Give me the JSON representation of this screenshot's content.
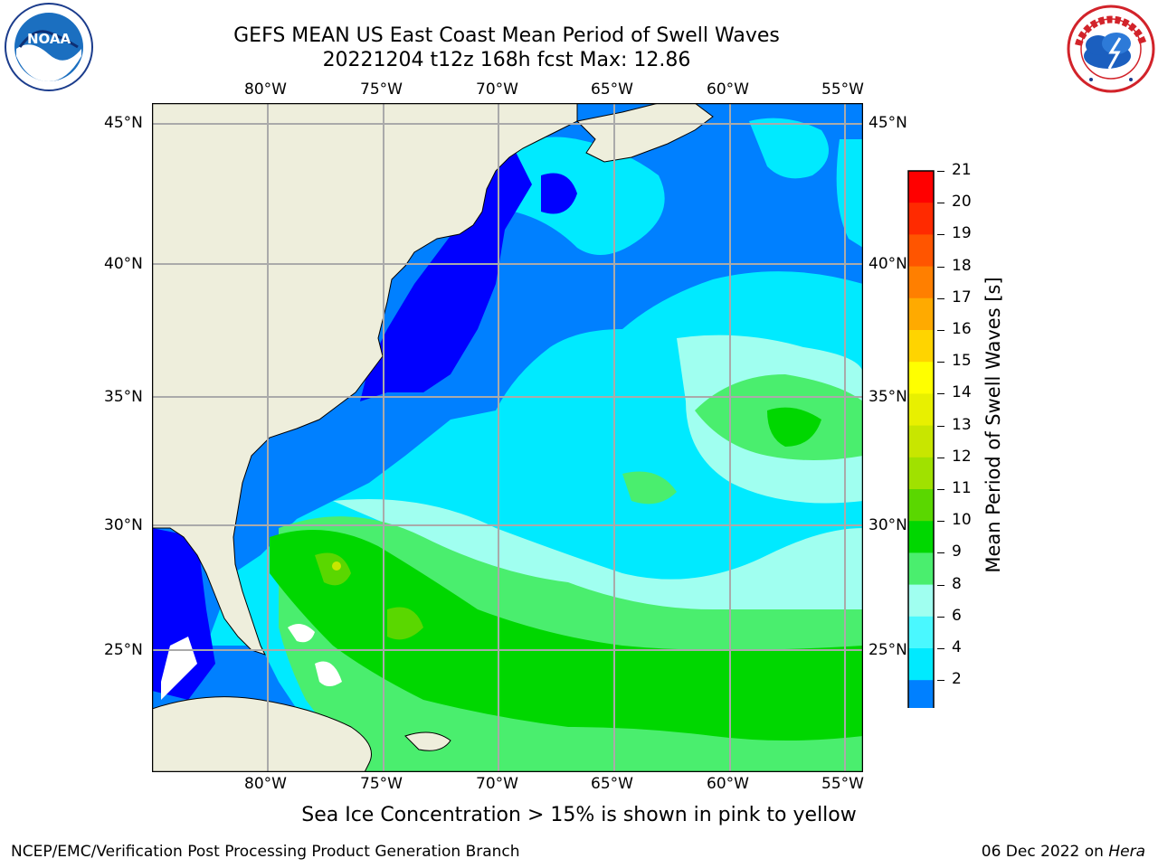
{
  "header": {
    "title_line1": "GEFS MEAN US East Coast Mean Period of Swell Waves",
    "title_line2": "20221204 t12z 168h fcst   Max: 12.86"
  },
  "logos": {
    "left": "NOAA",
    "left_ring_text": "NATIONAL OCEANIC AND ATMOSPHERIC ADMINISTRATION · U.S. DEPARTMENT OF COMMERCE",
    "right_ring_text": "NATIONAL WEATHER SERVICE"
  },
  "map": {
    "lon_labels": [
      "80°W",
      "75°W",
      "70°W",
      "65°W",
      "60°W",
      "55°W"
    ],
    "lat_labels": [
      "45°N",
      "40°N",
      "35°N",
      "30°N",
      "25°N"
    ],
    "colors": {
      "land": "#eeeedc",
      "grid": "#aaaaaa"
    }
  },
  "colorbar": {
    "label": "Mean Period of Swell Waves [s]",
    "ticks": [
      "21",
      "20",
      "19",
      "18",
      "17",
      "16",
      "15",
      "14",
      "13",
      "12",
      "11",
      "10",
      "9",
      "8",
      "6",
      "4",
      "2"
    ],
    "colors": [
      "#ff0000",
      "#ff2a00",
      "#ff5500",
      "#ff7f00",
      "#ffaa00",
      "#ffd400",
      "#ffff00",
      "#e8f000",
      "#c8e600",
      "#a0e100",
      "#5ad700",
      "#00d700",
      "#4aee6e",
      "#a0fff0",
      "#4af8ff",
      "#00eaff",
      "#0080ff"
    ],
    "extend_color": "#0000ff"
  },
  "footer": {
    "note": "Sea Ice Concentration > 15% is shown in pink to yellow",
    "left": "NCEP/EMC/Verification Post Processing Product Generation Branch",
    "right_date": "06 Dec 2022 on ",
    "right_host": "Hera"
  }
}
